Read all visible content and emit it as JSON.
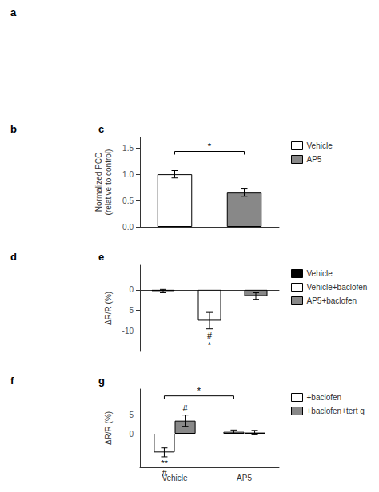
{
  "chart_data": [
    {
      "type": "blank",
      "title": "a"
    },
    {
      "type": "blank",
      "title": "b"
    },
    {
      "type": "bar",
      "title": "c",
      "categories": [
        "Vehicle",
        "AP5"
      ],
      "values": [
        1.0,
        0.65
      ],
      "errors": [
        0.07,
        0.07
      ],
      "colors": [
        "white",
        "#888888"
      ],
      "ylabel": "Normalized PCC\n(relative to control)",
      "ylim": [
        0,
        1.7
      ],
      "yticks": [
        {
          "value": 0,
          "label": "0.0"
        },
        0.5,
        {
          "value": 1,
          "label": "1.0"
        },
        1.5
      ],
      "grid": false,
      "legend": "right",
      "tick_labels": "y",
      "annotations": [
        {
          "text": "*",
          "between": [
            "Vehicle",
            "AP5"
          ]
        }
      ]
    },
    {
      "type": "blank",
      "title": "d"
    },
    {
      "type": "bar",
      "title": "e",
      "categories": [
        "Vehicle",
        "Vehicle+baclofen",
        "AP5+baclofen"
      ],
      "values": [
        -0.3,
        -7.5,
        -1.5
      ],
      "errors": [
        0.4,
        2.0,
        0.8
      ],
      "colors": [
        "black",
        "white",
        "#888888"
      ],
      "ylabel": "ΔR/R (%)",
      "ylim": [
        -15,
        6
      ],
      "yticks": [
        0,
        -5,
        -10
      ],
      "grid": false,
      "legend": "right",
      "tick_labels": "y",
      "annotations": [
        {
          "text": "#",
          "category": "Vehicle+baclofen"
        },
        {
          "text": "*",
          "category": "Vehicle+baclofen"
        }
      ]
    },
    {
      "type": "blank",
      "title": "f"
    },
    {
      "type": "bar",
      "title": "g",
      "categories": [
        "Vehicle",
        "AP5"
      ],
      "series": [
        {
          "name": "+baclofen",
          "color": "white",
          "values": [
            -5.0,
            0.5
          ],
          "errors": [
            1.2,
            0.5
          ]
        },
        {
          "name": "+baclofen+tert q",
          "color": "#888888",
          "values": [
            3.5,
            0.3
          ],
          "errors": [
            1.5,
            0.6
          ]
        }
      ],
      "ylabel": "ΔR/R (%)",
      "ylim": [
        -9,
        12
      ],
      "yticks": [
        0,
        5
      ],
      "grid": false,
      "legend": "right",
      "annotations": [
        {
          "text": "*",
          "series": "+baclofen",
          "between": [
            "Vehicle",
            "AP5"
          ]
        },
        {
          "text": "**",
          "series": "+baclofen",
          "category": "Vehicle"
        },
        {
          "text": "#",
          "series": "+baclofen",
          "category": "Vehicle"
        },
        {
          "text": "#",
          "series": "+baclofen+tert q",
          "category": "Vehicle"
        }
      ]
    }
  ]
}
